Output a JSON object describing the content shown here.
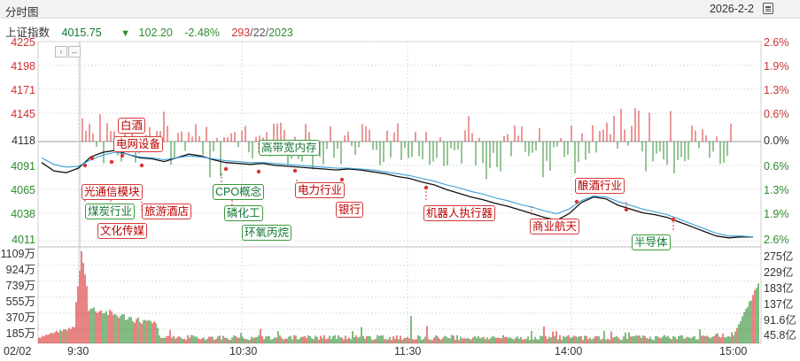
{
  "window": {
    "tab_label": "分时图",
    "date": "2026-2-2",
    "calendar_icon": "calendar-icon"
  },
  "quote": {
    "name": "上证指数",
    "price": "4015.75",
    "arrow": "▼",
    "change": "102.20",
    "pct": "-2.48%",
    "breadth": "293",
    "breadth2": "/22/",
    "breadth3": "2023"
  },
  "price_axis": {
    "left": [
      "4225",
      "4198",
      "4171",
      "4145",
      "4118",
      "4091",
      "4065",
      "4038",
      "4011"
    ],
    "right": [
      "2.6%",
      "1.9%",
      "1.3%",
      "0.6%",
      "0.0%",
      "0.6%",
      "1.3%",
      "1.9%",
      "2.6%"
    ]
  },
  "volume_axis": {
    "left": [
      "1109万",
      "924万",
      "739万",
      "555万",
      "370万",
      "185万"
    ],
    "right": [
      "275亿",
      "229亿",
      "183亿",
      "137亿",
      "91.6亿",
      "45.8亿"
    ]
  },
  "time_axis": [
    "02/02",
    "9:30",
    "10:30",
    "11:30",
    "14:00",
    "15:00"
  ],
  "annotations": [
    {
      "text": "白酒",
      "color": "red"
    },
    {
      "text": "电网设备",
      "color": "red"
    },
    {
      "text": "高带宽内存",
      "color": "green"
    },
    {
      "text": "光通信模块",
      "color": "red"
    },
    {
      "text": "煤炭行业",
      "color": "green"
    },
    {
      "text": "旅游酒店",
      "color": "red"
    },
    {
      "text": "文化传媒",
      "color": "red"
    },
    {
      "text": "CPO概念",
      "color": "green"
    },
    {
      "text": "磷化工",
      "color": "green"
    },
    {
      "text": "环氧丙烷",
      "color": "green"
    },
    {
      "text": "电力行业",
      "color": "red"
    },
    {
      "text": "银行",
      "color": "red"
    },
    {
      "text": "机器人执行器",
      "color": "red"
    },
    {
      "text": "商业航天",
      "color": "red"
    },
    {
      "text": "酿酒行业",
      "color": "red"
    },
    {
      "text": "半导体",
      "color": "green"
    }
  ],
  "colors": {
    "up": "#d93030",
    "down": "#2e8b2e",
    "price_line": "#111111",
    "avg_line": "#3aa0d8",
    "grid": "#dcdcdc"
  },
  "chart_data": {
    "type": "line",
    "title": "",
    "series": [
      {
        "values": [
          4095,
          4086,
          4084,
          4089,
          4101,
          4106,
          4108,
          4104,
          4100,
          4099,
          4096,
          4100,
          4104,
          4102,
          4098,
          4095,
          4094,
          4093,
          4094,
          4092,
          4091,
          4090,
          4089,
          4088,
          4087,
          4088,
          4087,
          4085,
          4083,
          4080,
          4078,
          4074,
          4071,
          4066,
          4062,
          4058,
          4055,
          4051,
          4048,
          4044,
          4040,
          4036,
          4033,
          4040,
          4052,
          4058,
          4056,
          4049,
          4045,
          4041,
          4039,
          4036,
          4031,
          4026,
          4021,
          4016,
          4014,
          4015,
          4015
        ]
      },
      {
        "values": [
          4100,
          4093,
          4090,
          4091,
          4098,
          4103,
          4106,
          4104,
          4101,
          4100,
          4098,
          4100,
          4102,
          4101,
          4099,
          4097,
          4096,
          4095,
          4095,
          4094,
          4093,
          4092,
          4091,
          4090,
          4089,
          4089,
          4088,
          4087,
          4085,
          4083,
          4081,
          4078,
          4075,
          4071,
          4068,
          4064,
          4061,
          4057,
          4054,
          4050,
          4047,
          4043,
          4040,
          4045,
          4054,
          4059,
          4058,
          4053,
          4049,
          4045,
          4042,
          4039,
          4034,
          4029,
          4024,
          4019,
          4016,
          4016,
          4015
        ]
      }
    ],
    "ylim": [
      4011,
      4225
    ],
    "volume_ylim": [
      0,
      1109
    ]
  }
}
